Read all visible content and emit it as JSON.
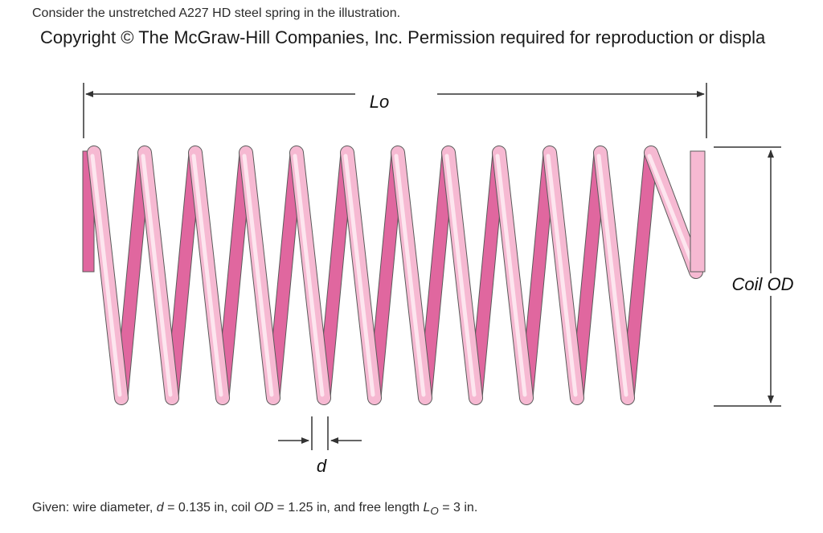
{
  "header": {
    "intro": "Consider the unstretched A227 HD steel spring in the illustration.",
    "copyright": "Copyright © The McGraw-Hill Companies, Inc. Permission required for reproduction or displa"
  },
  "diagram": {
    "label_free_length": "Lo",
    "label_coil_od": "Coil OD",
    "label_wire_diameter": "d",
    "colors": {
      "wire_front": "#f6b9d2",
      "wire_highlight": "#fde6ef",
      "wire_back": "#e0679f",
      "outline": "#5a5a5a",
      "dimension": "#333333"
    }
  },
  "given": {
    "prefix": "Given: wire diameter, ",
    "d_symbol": "d",
    "d_value": " = 0.135 in, coil ",
    "od_symbol": "OD",
    "od_value": " = 1.25 in, and free length ",
    "lo_symbol": "L",
    "lo_sub": "O",
    "lo_value": " = 3 in."
  }
}
